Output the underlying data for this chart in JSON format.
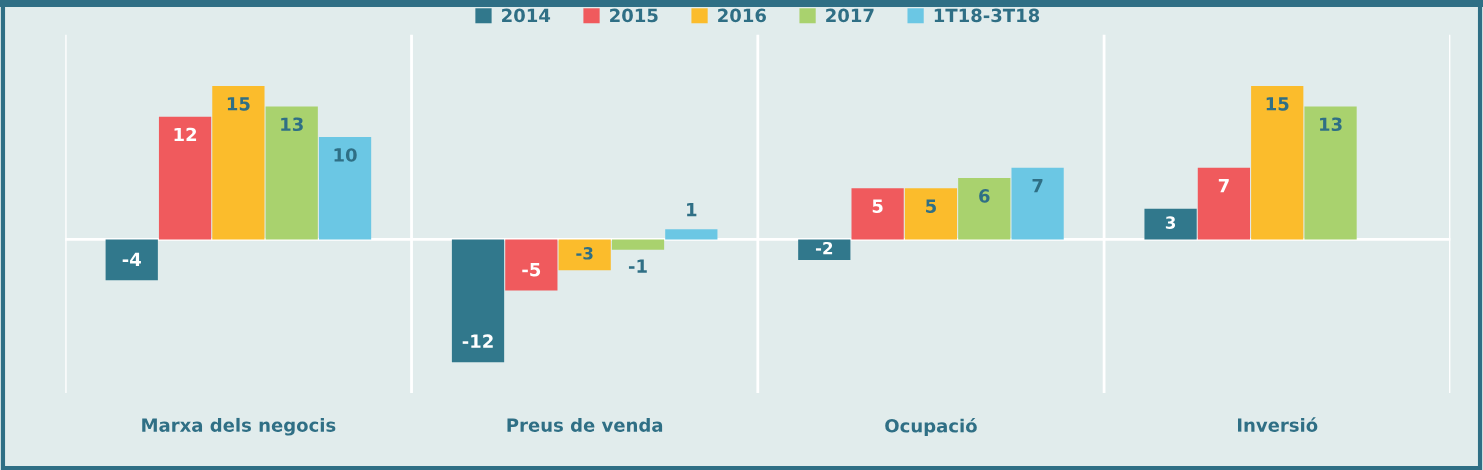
{
  "chart_data": {
    "type": "bar",
    "categories": [
      "Marxa dels negocis",
      "Preus de venda",
      "Ocupació",
      "Inversió"
    ],
    "series": [
      {
        "name": "2014",
        "color": "#31788c",
        "values": [
          -4,
          -12,
          -2,
          3
        ]
      },
      {
        "name": "2015",
        "color": "#f05a5d",
        "values": [
          12,
          -5,
          5,
          7
        ]
      },
      {
        "name": "2016",
        "color": "#fbbc2c",
        "values": [
          15,
          -3,
          5,
          15
        ]
      },
      {
        "name": "2017",
        "color": "#a9d26e",
        "values": [
          13,
          -1,
          6,
          13
        ]
      },
      {
        "name": "1T18-3T18",
        "color": "#6bc7e4",
        "values": [
          10,
          1,
          7,
          null
        ]
      }
    ],
    "ylim": [
      -15,
      20
    ],
    "tick_labels": "x",
    "data_labels": true,
    "grid": "x",
    "legend": "top"
  }
}
